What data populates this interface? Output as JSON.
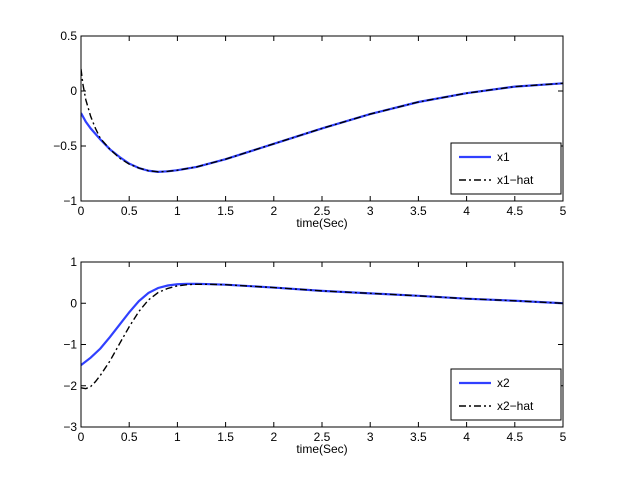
{
  "chart_data": [
    {
      "type": "line",
      "title": "",
      "xlabel": "time(Sec)",
      "ylabel": "",
      "xlim": [
        0,
        5
      ],
      "ylim": [
        -1,
        0.5
      ],
      "xticks": [
        0,
        0.5,
        1,
        1.5,
        2,
        2.5,
        3,
        3.5,
        4,
        4.5,
        5
      ],
      "xtick_labels": [
        "0",
        "0.5",
        "1",
        "1.5",
        "2",
        "2.5",
        "3",
        "3.5",
        "4",
        "4.5",
        "5"
      ],
      "yticks": [
        -1,
        -0.5,
        0,
        0.5
      ],
      "ytick_labels": [
        "−1",
        "−0.5",
        "0",
        "0.5"
      ],
      "grid": false,
      "legend_position": "bottom-right",
      "series": [
        {
          "name": "x1",
          "color": "#3040ff",
          "style": "solid",
          "x": [
            0,
            0.05,
            0.1,
            0.2,
            0.3,
            0.4,
            0.5,
            0.6,
            0.7,
            0.8,
            0.9,
            1.0,
            1.2,
            1.5,
            2.0,
            2.5,
            3.0,
            3.5,
            4.0,
            4.5,
            5.0
          ],
          "y": [
            -0.2,
            -0.28,
            -0.34,
            -0.44,
            -0.53,
            -0.6,
            -0.66,
            -0.7,
            -0.725,
            -0.735,
            -0.73,
            -0.72,
            -0.69,
            -0.62,
            -0.48,
            -0.34,
            -0.21,
            -0.1,
            -0.02,
            0.04,
            0.07
          ]
        },
        {
          "name": "x1−hat",
          "color": "#000000",
          "style": "dashdot",
          "x": [
            0,
            0.02,
            0.05,
            0.08,
            0.1,
            0.15,
            0.2,
            0.3,
            0.4,
            0.5,
            0.6,
            0.7,
            0.8,
            0.9,
            1.0,
            1.2,
            1.5,
            2.0,
            2.5,
            3.0,
            3.5,
            4.0,
            4.5,
            5.0
          ],
          "y": [
            0.2,
            0.06,
            -0.08,
            -0.17,
            -0.23,
            -0.34,
            -0.43,
            -0.53,
            -0.61,
            -0.665,
            -0.7,
            -0.725,
            -0.735,
            -0.73,
            -0.72,
            -0.69,
            -0.62,
            -0.48,
            -0.34,
            -0.21,
            -0.1,
            -0.02,
            0.04,
            0.07
          ]
        }
      ]
    },
    {
      "type": "line",
      "title": "",
      "xlabel": "time(Sec)",
      "ylabel": "",
      "xlim": [
        0,
        5
      ],
      "ylim": [
        -3,
        1
      ],
      "xticks": [
        0,
        0.5,
        1,
        1.5,
        2,
        2.5,
        3,
        3.5,
        4,
        4.5,
        5
      ],
      "xtick_labels": [
        "0",
        "0.5",
        "1",
        "1.5",
        "2",
        "2.5",
        "3",
        "3.5",
        "4",
        "4.5",
        "5"
      ],
      "yticks": [
        -3,
        -2,
        -1,
        0,
        1
      ],
      "ytick_labels": [
        "−3",
        "−2",
        "−1",
        "0",
        "1"
      ],
      "grid": false,
      "legend_position": "bottom-right",
      "series": [
        {
          "name": "x2",
          "color": "#3040ff",
          "style": "solid",
          "x": [
            0,
            0.1,
            0.2,
            0.3,
            0.4,
            0.5,
            0.6,
            0.7,
            0.8,
            0.9,
            1.0,
            1.1,
            1.2,
            1.3,
            1.5,
            2.0,
            2.5,
            3.0,
            3.5,
            4.0,
            4.5,
            5.0
          ],
          "y": [
            -1.5,
            -1.32,
            -1.1,
            -0.82,
            -0.52,
            -0.22,
            0.05,
            0.25,
            0.37,
            0.43,
            0.46,
            0.47,
            0.47,
            0.465,
            0.45,
            0.38,
            0.3,
            0.24,
            0.18,
            0.11,
            0.06,
            0.0
          ]
        },
        {
          "name": "x2−hat",
          "color": "#000000",
          "style": "dashdot",
          "x": [
            0,
            0.05,
            0.1,
            0.15,
            0.2,
            0.3,
            0.4,
            0.5,
            0.6,
            0.7,
            0.8,
            0.9,
            1.0,
            1.1,
            1.2,
            1.3,
            1.5,
            2.0,
            2.5,
            3.0,
            3.5,
            4.0,
            4.5,
            5.0
          ],
          "y": [
            -2.05,
            -2.07,
            -2.02,
            -1.9,
            -1.75,
            -1.4,
            -0.98,
            -0.57,
            -0.2,
            0.08,
            0.26,
            0.36,
            0.42,
            0.45,
            0.46,
            0.46,
            0.45,
            0.38,
            0.3,
            0.24,
            0.18,
            0.11,
            0.06,
            0.0
          ]
        }
      ]
    }
  ]
}
